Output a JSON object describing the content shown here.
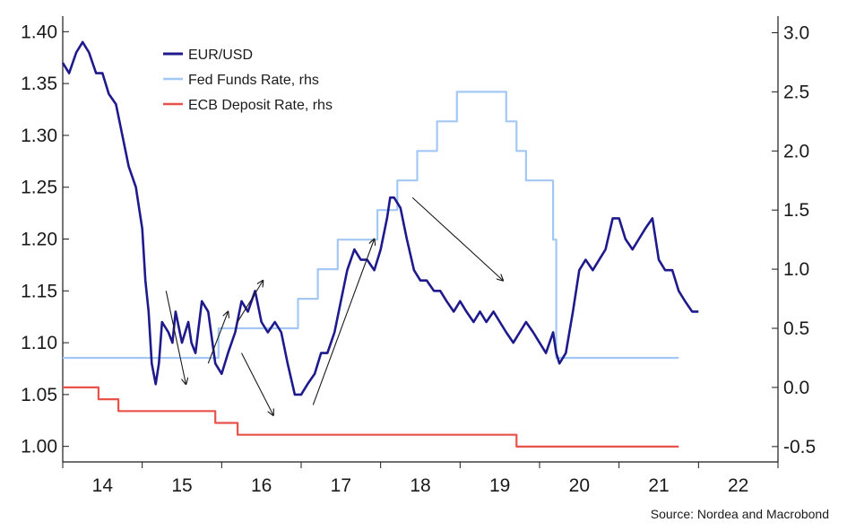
{
  "chart_data": {
    "type": "line",
    "title": "",
    "source": "Source: Nordea and Macrobond",
    "x_axis": {
      "tick_labels": [
        "14",
        "15",
        "16",
        "17",
        "18",
        "19",
        "20",
        "21",
        "22"
      ],
      "tick_positions": [
        2014.5,
        2015.5,
        2016.5,
        2017.5,
        2018.5,
        2019.5,
        2020.5,
        2021.5,
        2022.5
      ],
      "range": [
        2014.0,
        2023.0
      ]
    },
    "y_axis_left": {
      "tick_labels": [
        "1.00",
        "1.05",
        "1.10",
        "1.15",
        "1.20",
        "1.25",
        "1.30",
        "1.35",
        "1.40"
      ],
      "ticks": [
        1.0,
        1.05,
        1.1,
        1.15,
        1.2,
        1.25,
        1.3,
        1.35,
        1.4
      ],
      "range": [
        0.985,
        1.415
      ]
    },
    "y_axis_right": {
      "tick_labels": [
        "-0.5",
        "0.0",
        "0.5",
        "1.0",
        "1.5",
        "2.0",
        "2.5",
        "3.0"
      ],
      "ticks": [
        -0.5,
        0.0,
        0.5,
        1.0,
        1.5,
        2.0,
        2.5,
        3.0
      ],
      "range": [
        -0.63,
        3.14
      ]
    },
    "grid": false,
    "legend_position": "top-left",
    "series": [
      {
        "name": "EUR/USD",
        "axis": "left",
        "color": "#1f1a8c",
        "x": [
          2014.0,
          2014.08,
          2014.17,
          2014.25,
          2014.33,
          2014.42,
          2014.5,
          2014.58,
          2014.67,
          2014.75,
          2014.83,
          2014.92,
          2015.0,
          2015.04,
          2015.08,
          2015.12,
          2015.17,
          2015.21,
          2015.25,
          2015.33,
          2015.38,
          2015.42,
          2015.5,
          2015.58,
          2015.62,
          2015.67,
          2015.75,
          2015.83,
          2015.92,
          2016.0,
          2016.08,
          2016.17,
          2016.25,
          2016.33,
          2016.42,
          2016.5,
          2016.58,
          2016.67,
          2016.75,
          2016.83,
          2016.92,
          2017.0,
          2017.08,
          2017.17,
          2017.25,
          2017.33,
          2017.42,
          2017.5,
          2017.58,
          2017.67,
          2017.75,
          2017.83,
          2017.92,
          2018.0,
          2018.08,
          2018.12,
          2018.17,
          2018.25,
          2018.33,
          2018.42,
          2018.5,
          2018.58,
          2018.67,
          2018.75,
          2018.83,
          2018.92,
          2019.0,
          2019.08,
          2019.17,
          2019.25,
          2019.33,
          2019.42,
          2019.5,
          2019.58,
          2019.67,
          2019.75,
          2019.83,
          2019.92,
          2020.0,
          2020.08,
          2020.17,
          2020.21,
          2020.25,
          2020.33,
          2020.42,
          2020.5,
          2020.58,
          2020.67,
          2020.75,
          2020.83,
          2020.92,
          2021.0,
          2021.08,
          2021.17,
          2021.25,
          2021.33,
          2021.42,
          2021.5,
          2021.58,
          2021.67,
          2021.75,
          2021.83,
          2021.92,
          2022.0
        ],
        "y": [
          1.37,
          1.36,
          1.38,
          1.39,
          1.38,
          1.36,
          1.36,
          1.34,
          1.33,
          1.3,
          1.27,
          1.25,
          1.21,
          1.16,
          1.13,
          1.08,
          1.06,
          1.08,
          1.12,
          1.11,
          1.1,
          1.13,
          1.1,
          1.12,
          1.1,
          1.09,
          1.14,
          1.13,
          1.08,
          1.07,
          1.09,
          1.11,
          1.14,
          1.13,
          1.15,
          1.12,
          1.11,
          1.12,
          1.11,
          1.08,
          1.05,
          1.05,
          1.06,
          1.07,
          1.09,
          1.09,
          1.11,
          1.14,
          1.17,
          1.19,
          1.18,
          1.18,
          1.17,
          1.19,
          1.22,
          1.24,
          1.24,
          1.23,
          1.2,
          1.17,
          1.16,
          1.16,
          1.15,
          1.15,
          1.14,
          1.13,
          1.14,
          1.13,
          1.12,
          1.13,
          1.12,
          1.13,
          1.12,
          1.11,
          1.1,
          1.11,
          1.12,
          1.11,
          1.1,
          1.09,
          1.11,
          1.09,
          1.08,
          1.09,
          1.13,
          1.17,
          1.18,
          1.17,
          1.18,
          1.19,
          1.22,
          1.22,
          1.2,
          1.19,
          1.2,
          1.21,
          1.22,
          1.18,
          1.17,
          1.17,
          1.15,
          1.14,
          1.13,
          1.13
        ]
      },
      {
        "name": "Fed Funds Rate, rhs",
        "axis": "right",
        "color": "#a3c8f5",
        "step": true,
        "x": [
          2014.0,
          2015.96,
          2016.96,
          2017.21,
          2017.46,
          2017.96,
          2018.21,
          2018.46,
          2018.71,
          2018.96,
          2019.58,
          2019.71,
          2019.83,
          2020.17,
          2020.21,
          2021.75
        ],
        "y": [
          0.25,
          0.5,
          0.75,
          1.0,
          1.25,
          1.5,
          1.75,
          2.0,
          2.25,
          2.5,
          2.25,
          2.0,
          1.75,
          1.25,
          0.25,
          0.25
        ]
      },
      {
        "name": "ECB Deposit Rate, rhs",
        "axis": "right",
        "color": "#e8524a",
        "step": true,
        "x": [
          2014.0,
          2014.45,
          2014.7,
          2015.92,
          2016.2,
          2019.71,
          2021.75
        ],
        "y": [
          0.0,
          -0.1,
          -0.2,
          -0.3,
          -0.4,
          -0.5,
          -0.5
        ]
      }
    ],
    "annotations": [
      {
        "kind": "arrow",
        "from": [
          2015.3,
          1.15
        ],
        "to": [
          2015.55,
          1.06
        ],
        "axis": "left"
      },
      {
        "kind": "arrow",
        "from": [
          2015.83,
          1.08
        ],
        "to": [
          2016.08,
          1.13
        ],
        "axis": "left"
      },
      {
        "kind": "arrow",
        "from": [
          2016.25,
          1.09
        ],
        "to": [
          2016.65,
          1.03
        ],
        "axis": "left"
      },
      {
        "kind": "arrow",
        "from": [
          2016.2,
          1.12
        ],
        "to": [
          2016.52,
          1.16
        ],
        "axis": "left"
      },
      {
        "kind": "arrow",
        "from": [
          2017.15,
          1.04
        ],
        "to": [
          2017.92,
          1.2
        ],
        "axis": "left"
      },
      {
        "kind": "arrow",
        "from": [
          2018.4,
          1.24
        ],
        "to": [
          2019.54,
          1.16
        ],
        "axis": "left"
      }
    ],
    "colors": {
      "axis": "#1a1a1a",
      "annotation": "#1a1a1a"
    }
  }
}
